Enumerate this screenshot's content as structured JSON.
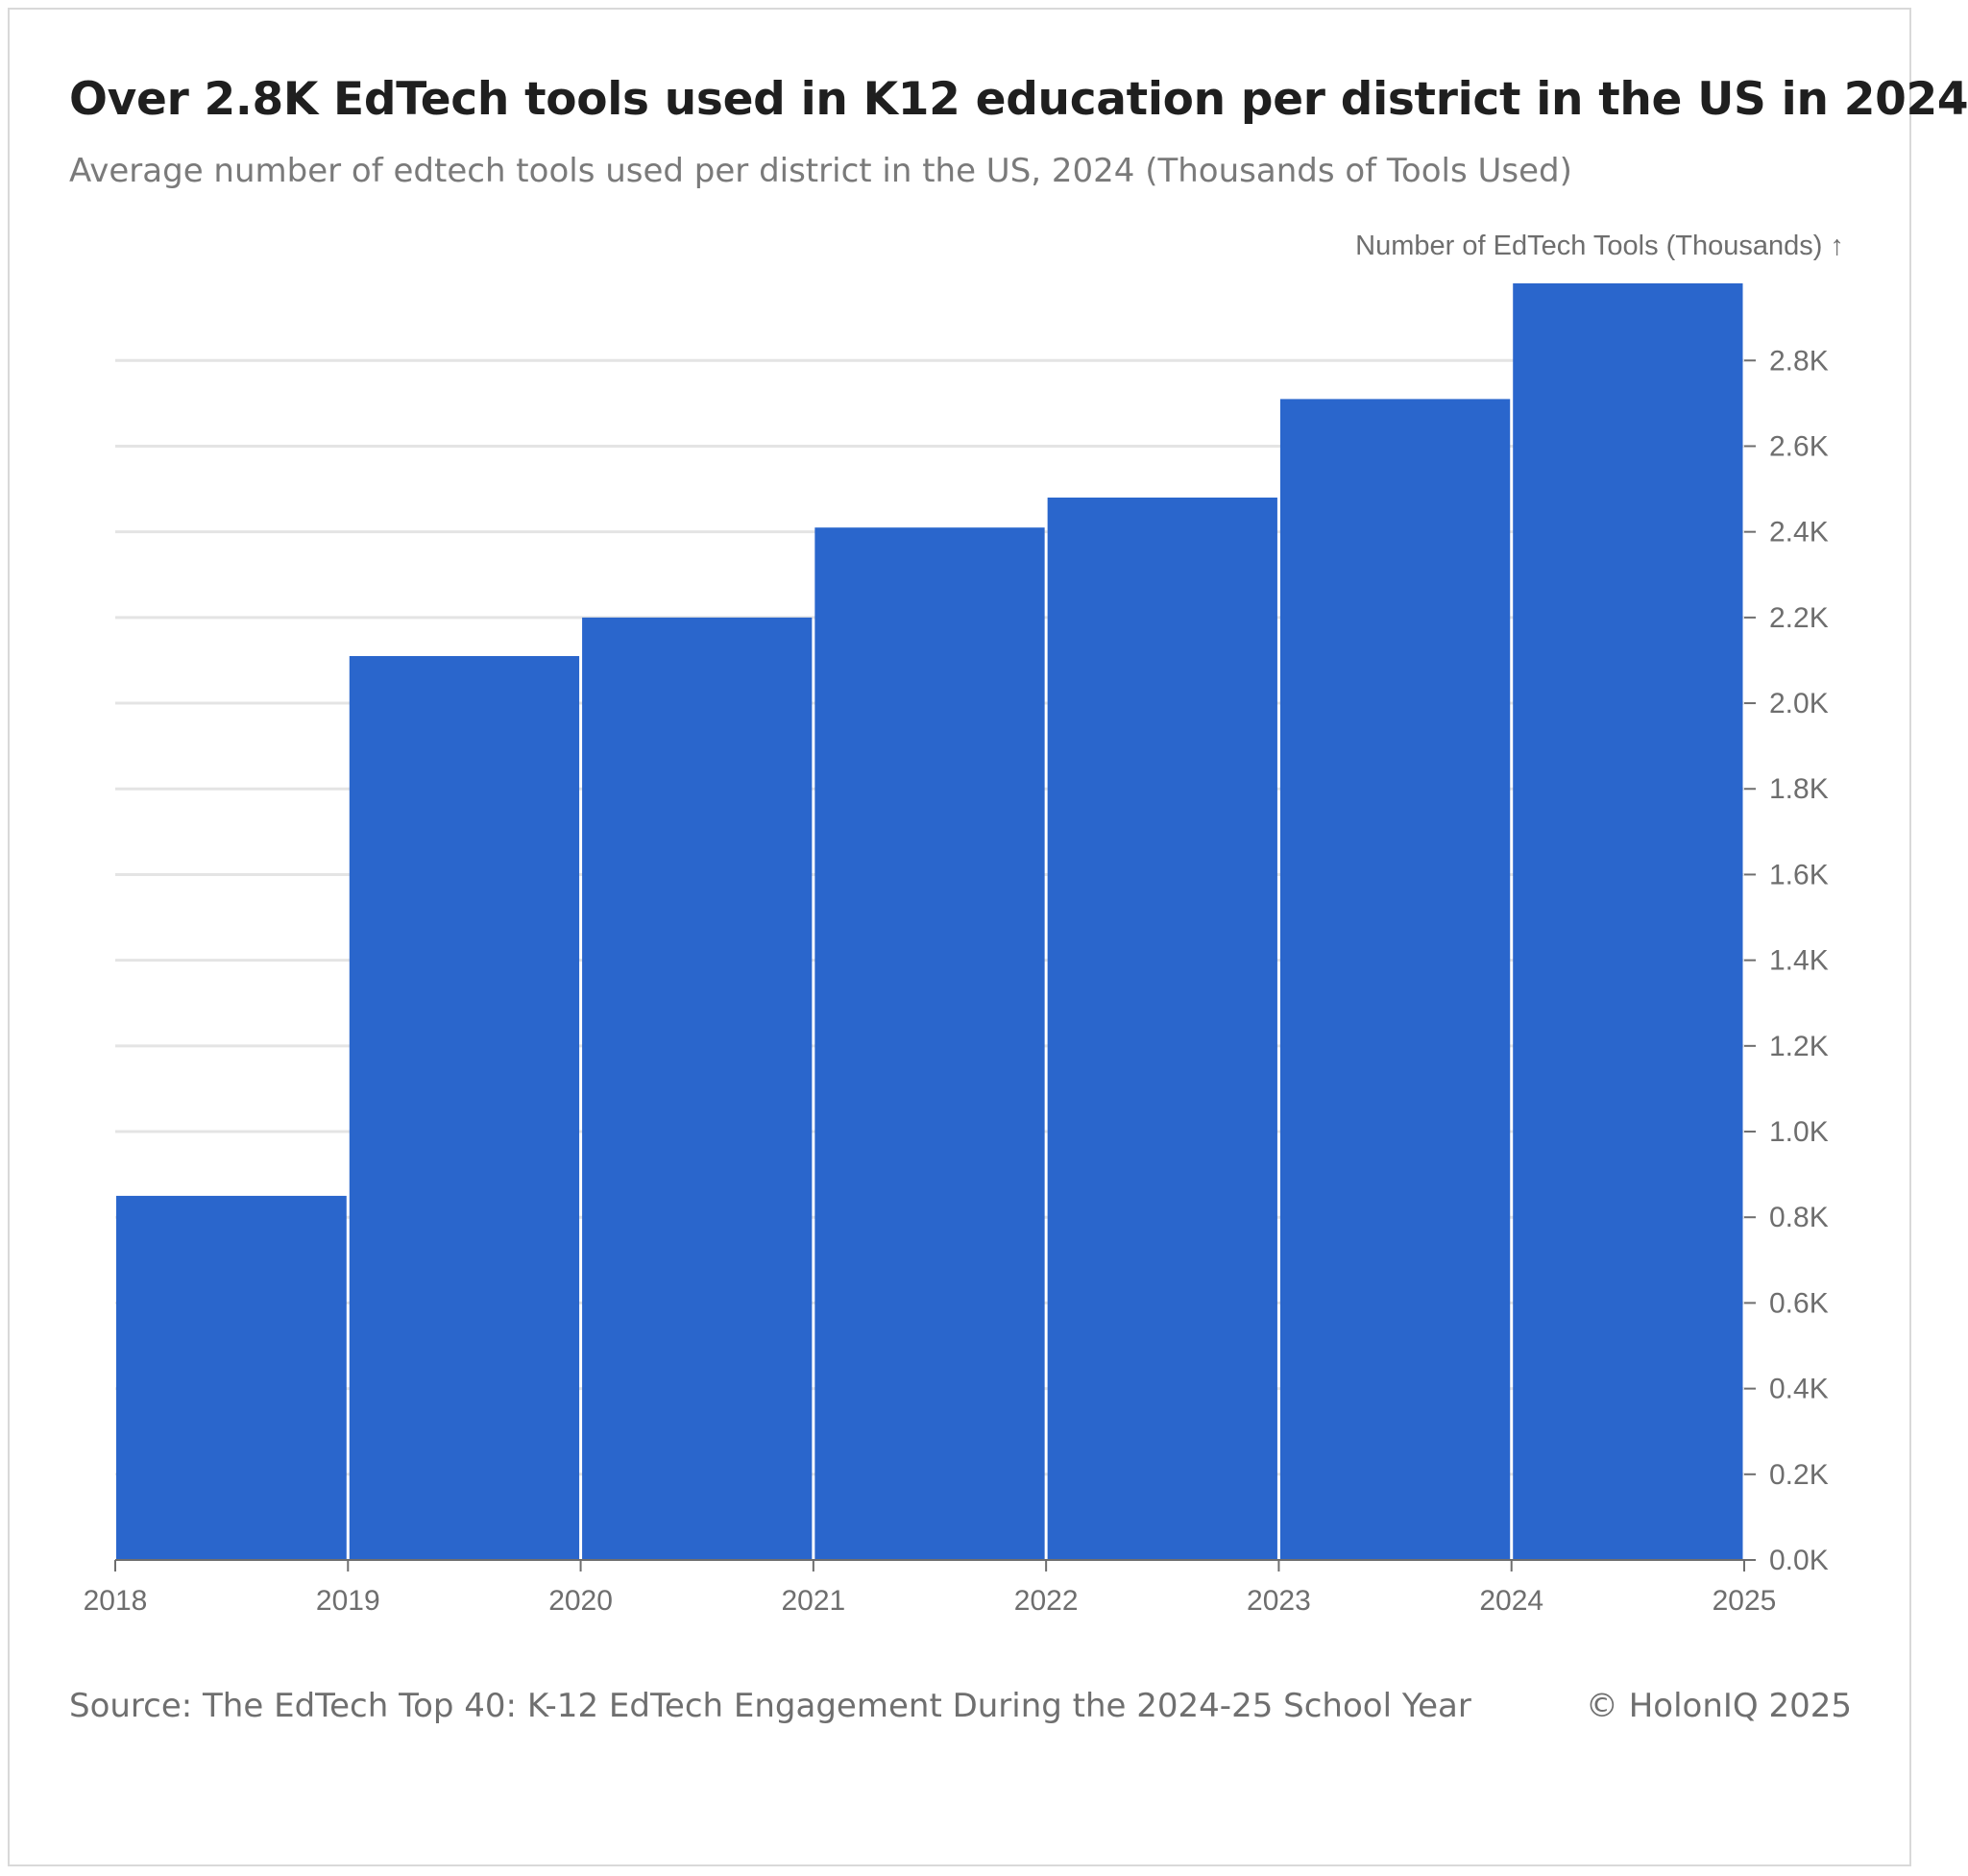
{
  "header": {
    "title": "Over 2.8K EdTech tools used in K12 education per district in the US in 2024",
    "subtitle": "Average number of edtech tools used per district in the US, 2024 (Thousands of Tools Used)"
  },
  "footer": {
    "source": "Source: The EdTech Top 40: K-12 EdTech Engagement During the 2024-25 School Year",
    "copyright": "© HolonIQ 2025"
  },
  "colors": {
    "bar": "#2a66cc",
    "grid": "#e4e4e4",
    "axis": "#6e6e6e"
  },
  "chart_data": {
    "type": "bar",
    "title": "Over 2.8K EdTech tools used in K12 education per district in the US in 2024",
    "ylabel": "Number of EdTech Tools (Thousands) ↑",
    "xlabel": "",
    "x_ticks": [
      "2018",
      "2019",
      "2020",
      "2021",
      "2022",
      "2023",
      "2024",
      "2025"
    ],
    "categories": [
      "2018",
      "2019",
      "2020",
      "2021",
      "2022",
      "2023",
      "2024"
    ],
    "values": [
      0.85,
      2.11,
      2.2,
      2.41,
      2.48,
      2.71,
      2.98
    ],
    "ylim": [
      0,
      2.98
    ],
    "y_ticks": [
      0,
      0.2,
      0.4,
      0.6,
      0.8,
      1.0,
      1.2,
      1.4,
      1.6,
      1.8,
      2.0,
      2.2,
      2.4,
      2.6,
      2.8
    ],
    "y_tick_labels": [
      "0.0K",
      "0.2K",
      "0.4K",
      "0.6K",
      "0.8K",
      "1.0K",
      "1.2K",
      "1.4K",
      "1.6K",
      "1.8K",
      "2.0K",
      "2.2K",
      "2.4K",
      "2.6K",
      "2.8K"
    ],
    "y_axis_position": "right",
    "grid": true,
    "legend": "none"
  }
}
